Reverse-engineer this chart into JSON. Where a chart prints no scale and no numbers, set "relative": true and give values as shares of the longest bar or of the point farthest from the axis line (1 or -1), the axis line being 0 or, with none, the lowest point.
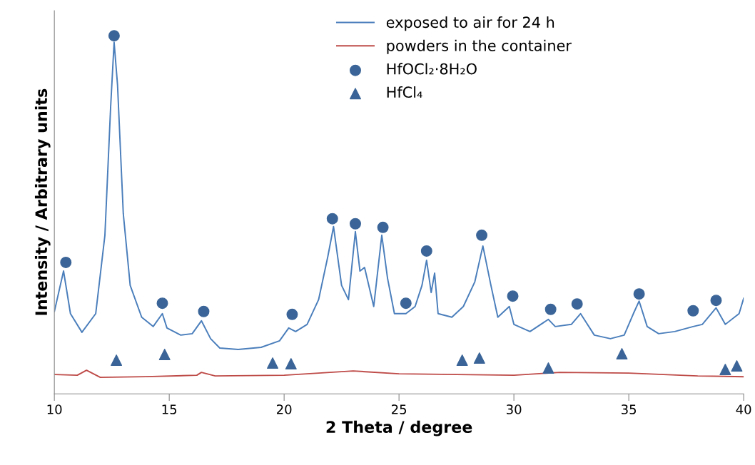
{
  "chart_data": {
    "type": "line",
    "relative": true,
    "xlabel": "2 Theta / degree",
    "ylabel": "Intensity / Arbitrary units",
    "xlim": [
      10,
      40
    ],
    "xticks": [
      10,
      15,
      20,
      25,
      30,
      35,
      40
    ],
    "legend": "top",
    "grid": false,
    "line_style": "solid",
    "series": [
      {
        "name": "exposed to air for 24 h",
        "color": "#4a7ebb",
        "marker": "none",
        "x": [
          10.0,
          10.4,
          10.7,
          11.2,
          11.8,
          12.2,
          12.45,
          12.6,
          12.75,
          13.0,
          13.3,
          13.8,
          14.3,
          14.7,
          14.9,
          15.5,
          16.0,
          16.4,
          16.8,
          17.2,
          18.0,
          19.0,
          19.8,
          20.2,
          20.5,
          21.0,
          21.5,
          21.9,
          22.15,
          22.5,
          22.8,
          23.1,
          23.3,
          23.5,
          23.9,
          24.25,
          24.5,
          24.8,
          25.3,
          25.7,
          26.0,
          26.2,
          26.4,
          26.55,
          26.7,
          27.3,
          27.8,
          28.3,
          28.65,
          29.0,
          29.3,
          29.8,
          30.0,
          30.7,
          31.5,
          31.8,
          32.5,
          32.9,
          33.1,
          33.5,
          34.2,
          34.8,
          35.2,
          35.45,
          35.8,
          36.3,
          37.0,
          37.8,
          38.2,
          38.8,
          39.2,
          39.8,
          40.0
        ],
        "values": [
          0.23,
          0.343,
          0.224,
          0.172,
          0.224,
          0.443,
          0.802,
          0.982,
          0.862,
          0.503,
          0.303,
          0.214,
          0.188,
          0.224,
          0.184,
          0.164,
          0.168,
          0.204,
          0.154,
          0.128,
          0.124,
          0.13,
          0.148,
          0.184,
          0.174,
          0.194,
          0.263,
          0.383,
          0.467,
          0.303,
          0.263,
          0.453,
          0.343,
          0.353,
          0.244,
          0.443,
          0.323,
          0.224,
          0.224,
          0.244,
          0.303,
          0.373,
          0.283,
          0.337,
          0.224,
          0.214,
          0.244,
          0.313,
          0.413,
          0.303,
          0.214,
          0.244,
          0.194,
          0.174,
          0.208,
          0.188,
          0.194,
          0.224,
          0.204,
          0.164,
          0.154,
          0.164,
          0.224,
          0.259,
          0.188,
          0.168,
          0.174,
          0.188,
          0.194,
          0.24,
          0.194,
          0.224,
          0.267
        ]
      },
      {
        "name": "powders in the container",
        "color": "#be4b48",
        "marker": "none",
        "x": [
          10,
          11,
          11.4,
          12,
          14,
          16.2,
          16.4,
          17,
          20,
          22,
          23,
          25,
          30,
          32,
          35,
          38,
          40
        ],
        "values": [
          0.054,
          0.052,
          0.066,
          0.046,
          0.048,
          0.052,
          0.06,
          0.05,
          0.052,
          0.06,
          0.064,
          0.056,
          0.052,
          0.06,
          0.058,
          0.05,
          0.048
        ]
      },
      {
        "name": "HfOCl₂·8H₂O",
        "type": "scatter",
        "color": "#3b6598",
        "marker": "circle",
        "x": [
          10.5,
          12.6,
          14.7,
          16.5,
          20.35,
          22.1,
          23.1,
          24.3,
          25.3,
          26.2,
          28.6,
          29.95,
          31.6,
          32.75,
          35.45,
          37.8,
          38.8
        ],
        "values": [
          0.367,
          1.0,
          0.253,
          0.23,
          0.222,
          0.489,
          0.475,
          0.465,
          0.253,
          0.399,
          0.443,
          0.273,
          0.236,
          0.251,
          0.279,
          0.232,
          0.261
        ]
      },
      {
        "name": "HfCl₄",
        "type": "scatter",
        "color": "#3b6598",
        "marker": "triangle",
        "x": [
          12.7,
          14.8,
          19.5,
          20.3,
          27.75,
          28.5,
          31.5,
          34.7,
          39.2,
          39.7
        ],
        "values": [
          0.094,
          0.11,
          0.086,
          0.084,
          0.094,
          0.1,
          0.072,
          0.112,
          0.068,
          0.078
        ]
      }
    ]
  }
}
